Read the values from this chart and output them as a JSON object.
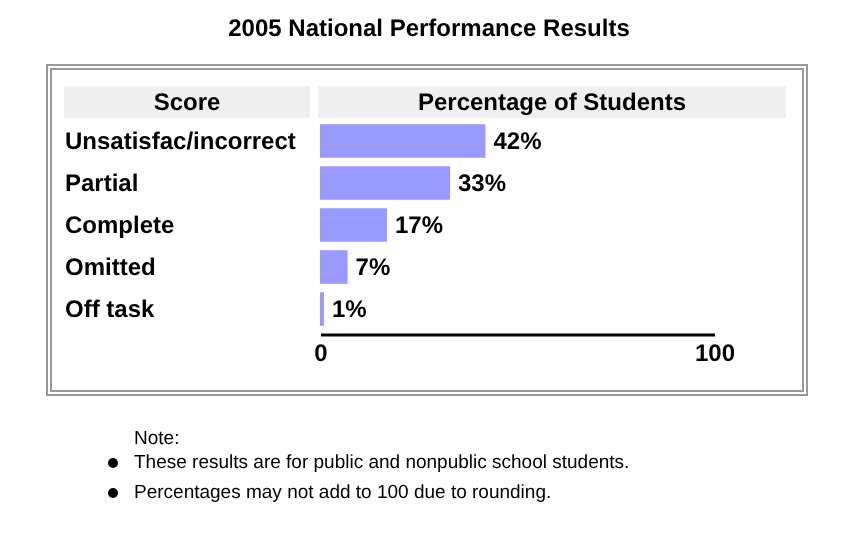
{
  "chart_data": {
    "type": "bar",
    "orientation": "horizontal",
    "title": "2005 National Performance Results",
    "xlabel": "Percentage of Students",
    "ylabel": "Score",
    "categories": [
      "Unsatisfac/incorrect",
      "Partial",
      "Complete",
      "Omitted",
      "Off task"
    ],
    "values": [
      42,
      33,
      17,
      7,
      1
    ],
    "value_labels": [
      "42%",
      "33%",
      "17%",
      "7%",
      "1%"
    ],
    "color": "#9999ff",
    "xlim": [
      0,
      100
    ],
    "xticks": [
      0,
      100
    ],
    "annotations": [
      "Note:",
      "These results are for public and nonpublic school students.",
      "Percentages may not add to 100 due to rounding."
    ]
  }
}
